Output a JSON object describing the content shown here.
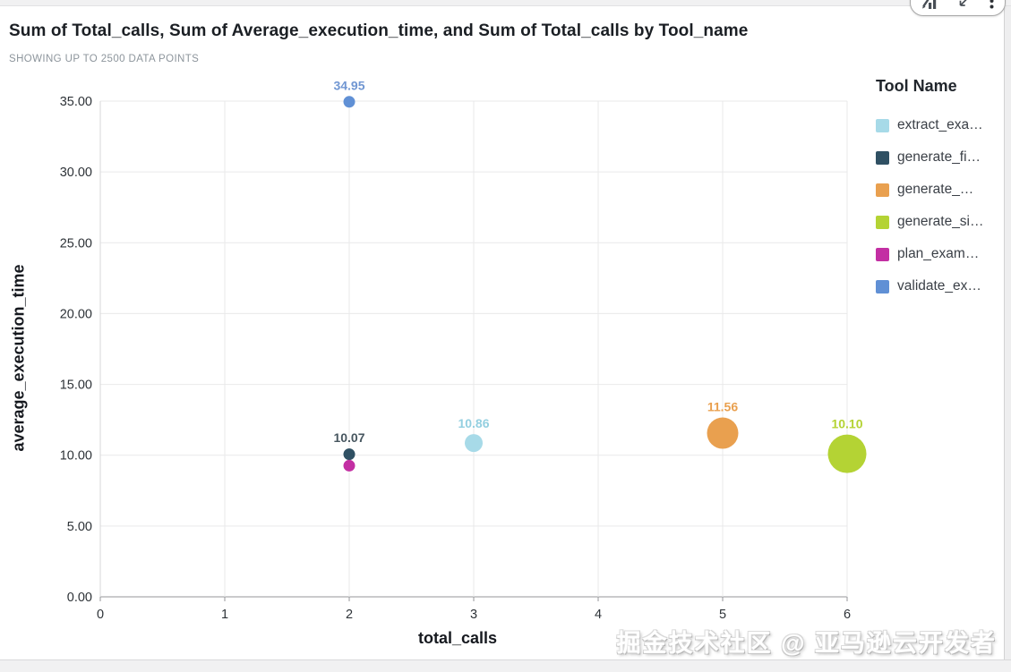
{
  "chart_data": {
    "type": "scatter",
    "title": "Sum of Total_calls, Sum of Average_execution_time, and Sum of Total_calls by Tool_name",
    "subtitle": "SHOWING UP TO 2500 DATA POINTS",
    "xlabel": "total_calls",
    "ylabel": "average_execution_time",
    "xlim": [
      0,
      6
    ],
    "ylim": [
      0,
      35
    ],
    "x_ticks": [
      0,
      1,
      2,
      3,
      4,
      5,
      6
    ],
    "y_ticks": [
      0,
      5,
      10,
      15,
      20,
      25,
      30,
      35
    ],
    "grid": true,
    "legend_position": "right",
    "legend": {
      "title": "Tool Name",
      "items": [
        {
          "label": "extract_exa…",
          "color": "#a7dae8"
        },
        {
          "label": "generate_fi…",
          "color": "#2f5063"
        },
        {
          "label": "generate_…",
          "color": "#e9a04f"
        },
        {
          "label": "generate_si…",
          "color": "#b4d334"
        },
        {
          "label": "plan_exam…",
          "color": "#c32fa3"
        },
        {
          "label": "validate_ex…",
          "color": "#6090d5"
        }
      ]
    },
    "points": [
      {
        "tool": "validate_ex…",
        "total_calls": 2,
        "avg_execution_time": 34.95,
        "label": "34.95",
        "color": "#6090d5",
        "label_color": "#7096d2",
        "radius_px": 6.5
      },
      {
        "tool": "generate_fi…",
        "total_calls": 2,
        "avg_execution_time": 10.07,
        "label": "10.07",
        "color": "#2f5063",
        "label_color": "#47565f",
        "radius_px": 6.5
      },
      {
        "tool": "plan_exam…",
        "total_calls": 2,
        "avg_execution_time": 9.26,
        "label": "",
        "color": "#c32fa3",
        "label_color": "#c32fa3",
        "radius_px": 6.5
      },
      {
        "tool": "extract_exa…",
        "total_calls": 3,
        "avg_execution_time": 10.86,
        "label": "10.86",
        "color": "#a7dae8",
        "label_color": "#93cfe0",
        "radius_px": 10
      },
      {
        "tool": "generate_…",
        "total_calls": 5,
        "avg_execution_time": 11.56,
        "label": "11.56",
        "color": "#e9a04f",
        "label_color": "#e9a04f",
        "radius_px": 17.5
      },
      {
        "tool": "generate_si…",
        "total_calls": 6,
        "avg_execution_time": 10.1,
        "label": "10.10",
        "color": "#b4d334",
        "label_color": "#b4d334",
        "radius_px": 21.5
      }
    ]
  },
  "watermark": "掘金技术社区 @ 亚马逊云开发者"
}
